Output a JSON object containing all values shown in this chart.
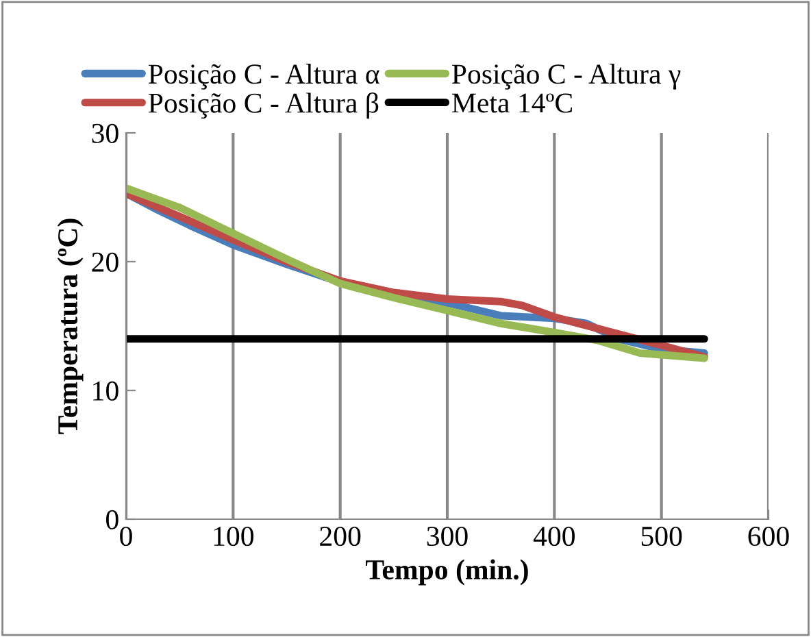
{
  "chart_data": {
    "type": "line",
    "xlabel": "Tempo (min.)",
    "ylabel": "Temperatura (ºC)",
    "xlim": [
      0,
      600
    ],
    "xticks": [
      0,
      100,
      200,
      300,
      400,
      500,
      600
    ],
    "ylim": [
      0,
      30
    ],
    "yticks": [
      0,
      10,
      20,
      30
    ],
    "grid": "x",
    "legend": "top",
    "line_style": "solid",
    "marker": "none",
    "series": [
      {
        "name": "Posição C - Altura α",
        "color": "#4a7ebb",
        "x": [
          0,
          30,
          60,
          100,
          150,
          200,
          250,
          300,
          350,
          400,
          430,
          460,
          500,
          540
        ],
        "values": [
          25.3,
          24,
          22.8,
          21.3,
          19.8,
          18.4,
          17.5,
          16.8,
          15.8,
          15.6,
          15.2,
          14,
          13.2,
          12.9
        ]
      },
      {
        "name": "Posição C - Altura β",
        "color": "#be4b48",
        "x": [
          0,
          50,
          100,
          150,
          200,
          250,
          300,
          350,
          370,
          400,
          450,
          500,
          540
        ],
        "values": [
          25.3,
          23.5,
          21.7,
          20,
          18.5,
          17.6,
          17.1,
          16.9,
          16.6,
          15.7,
          14.6,
          13.5,
          12.6
        ]
      },
      {
        "name": "Posição C - Altura γ",
        "color": "#98b954",
        "x": [
          0,
          50,
          100,
          150,
          200,
          250,
          300,
          350,
          400,
          440,
          480,
          540
        ],
        "values": [
          25.7,
          24.2,
          22.2,
          20.2,
          18.3,
          17.2,
          16.2,
          15.2,
          14.5,
          13.9,
          12.9,
          12.5
        ]
      },
      {
        "name": "Meta 14ºC",
        "color": "#000000",
        "x": [
          0,
          540
        ],
        "values": [
          14,
          14
        ]
      }
    ]
  }
}
